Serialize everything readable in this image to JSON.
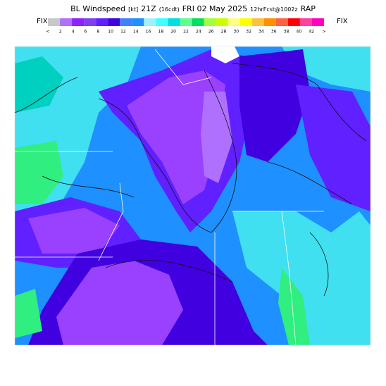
{
  "header": {
    "title_parts": [
      "BL Windspeed",
      "[kt]",
      "21Z",
      "(16cdt)",
      "FRI 02 May 2025",
      "12hrFcst@1002z",
      "RAP"
    ],
    "fix_left": "FIX",
    "fix_right": "FIX"
  },
  "legend": {
    "colors": [
      "#c8c8c8",
      "#b070ff",
      "#9020ff",
      "#8040f0",
      "#6020ff",
      "#4000e0",
      "#4080ff",
      "#1e90ff",
      "#a0f0ff",
      "#40ffff",
      "#00e0e0",
      "#60ff90",
      "#00e060",
      "#a0ff40",
      "#c8ff00",
      "#ffff80",
      "#ffff00",
      "#ffc040",
      "#ff9000",
      "#ff6040",
      "#ff0000",
      "#ff40a0",
      "#ff00c0"
    ],
    "labels": [
      "<",
      "2",
      "4",
      "6",
      "8",
      "10",
      "12",
      "14",
      "16",
      "18",
      "20",
      "22",
      "24",
      "26",
      "28",
      "30",
      "32",
      "34",
      "36",
      "38",
      "40",
      "42",
      ">"
    ]
  }
}
